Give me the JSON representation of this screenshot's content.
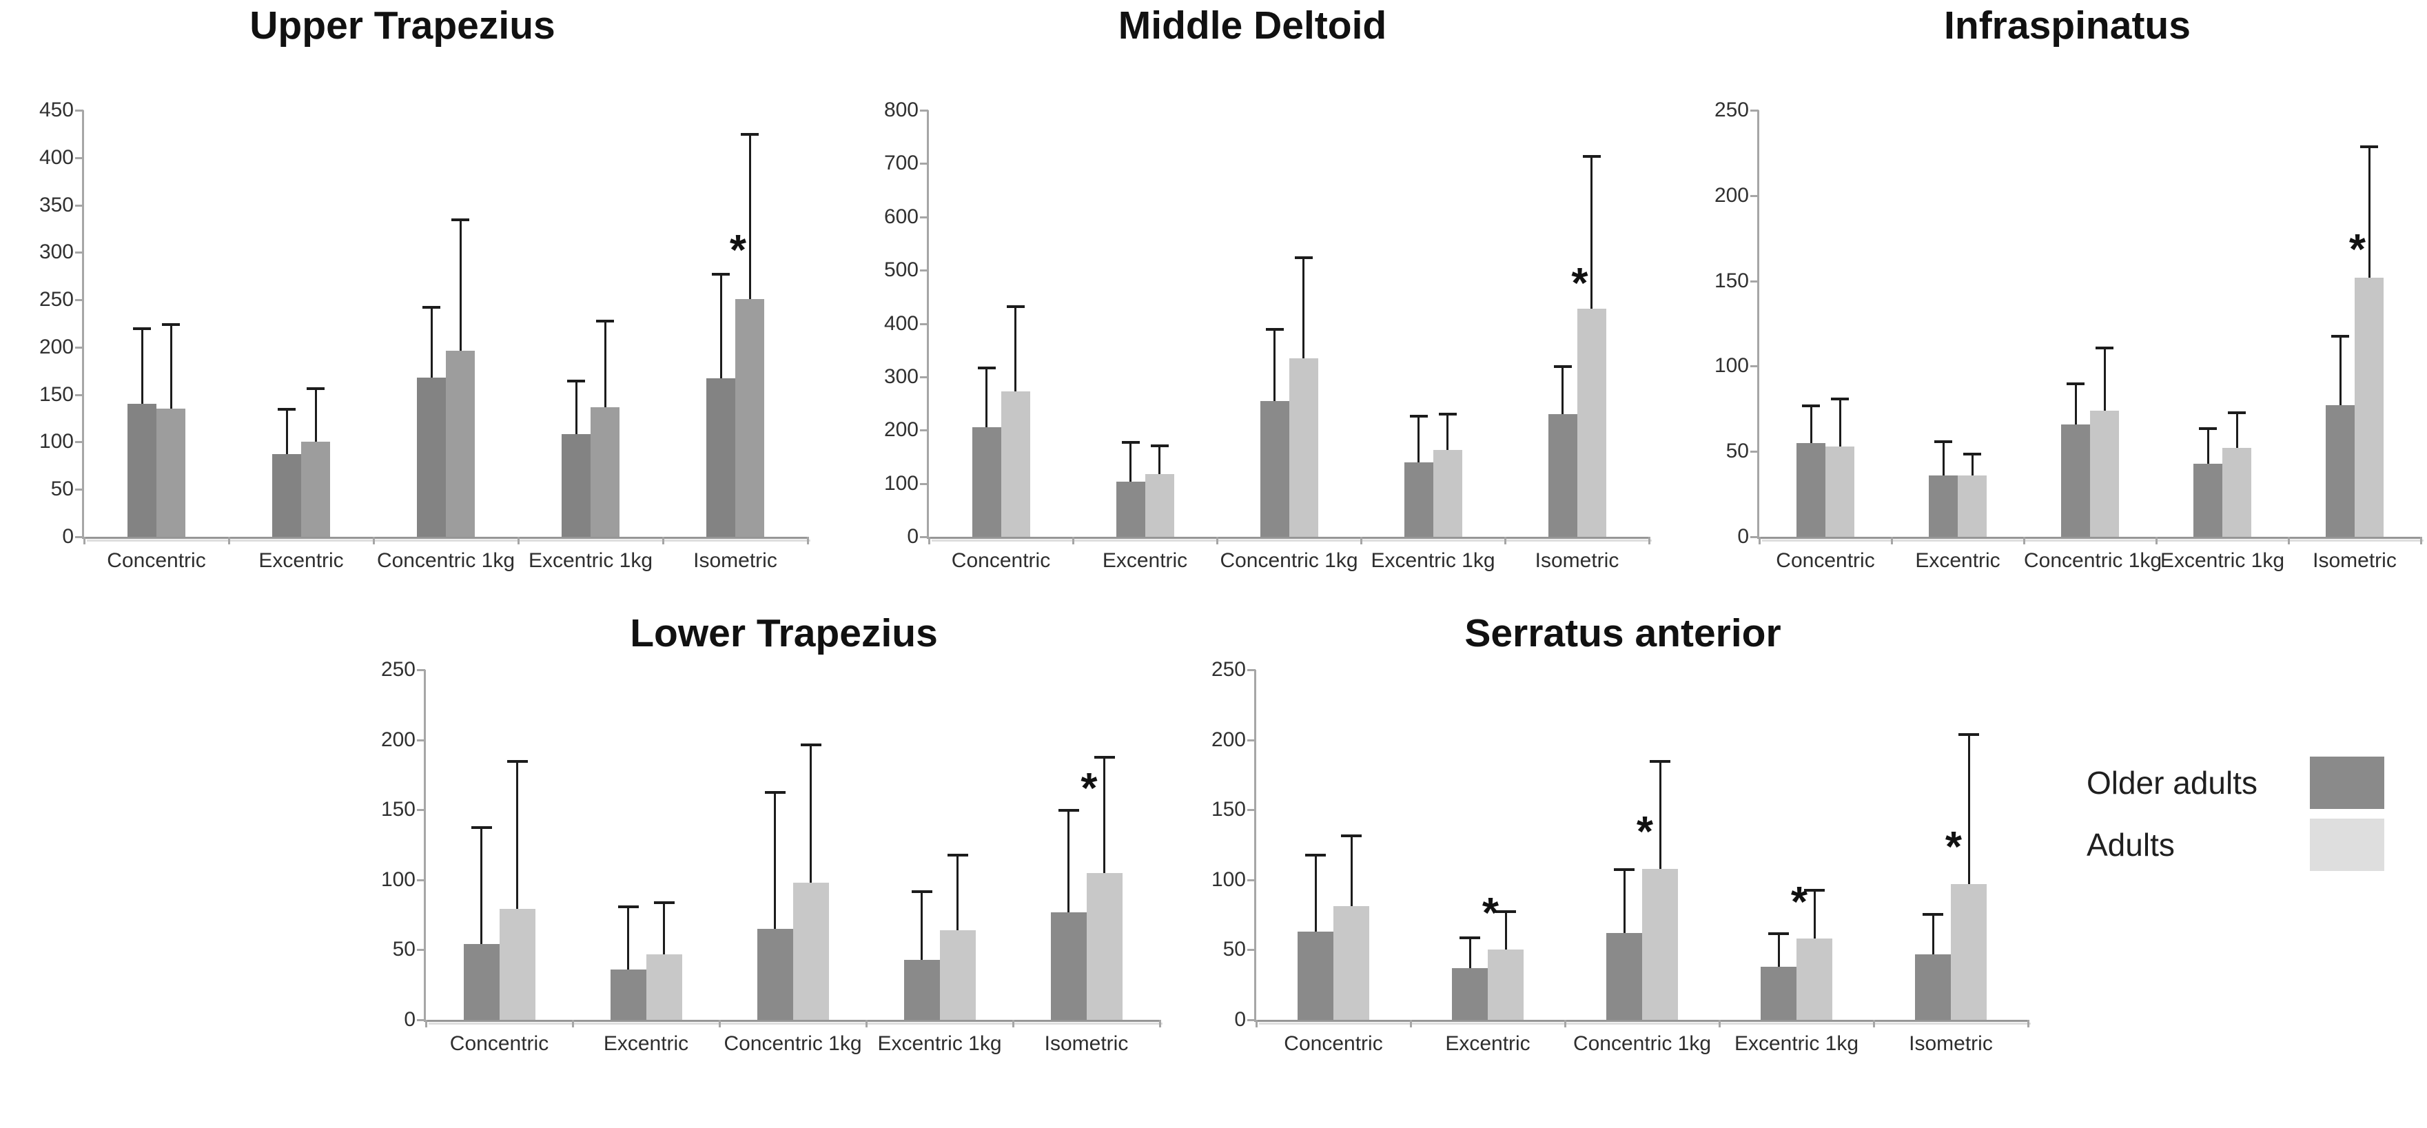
{
  "legend": {
    "items": [
      {
        "label": "Older adults",
        "color": "#8a8a8a"
      },
      {
        "label": "Adults",
        "color": "#dedede"
      }
    ]
  },
  "chart_data": [
    {
      "type": "bar",
      "title": "Upper Trapezius",
      "categories": [
        "Concentric",
        "Excentric",
        "Concentric 1kg",
        "Excentric 1kg",
        "Isometric"
      ],
      "series": [
        {
          "name": "Older adults",
          "color": "#838383",
          "values": [
            140,
            87,
            168,
            108,
            167
          ],
          "error_top": [
            220,
            135,
            243,
            165,
            278
          ]
        },
        {
          "name": "Adults",
          "color": "#9d9d9d",
          "values": [
            135,
            100,
            196,
            137,
            251
          ],
          "error_top": [
            225,
            157,
            335,
            228,
            425
          ]
        }
      ],
      "significant": [
        false,
        false,
        false,
        false,
        true
      ],
      "significance_marker": "*",
      "xlabel": "",
      "ylabel": "",
      "ylim": [
        0,
        450
      ],
      "ytick_step": 50,
      "grid": false,
      "legend_position": "none"
    },
    {
      "type": "bar",
      "title": "Middle Deltoid",
      "categories": [
        "Concentric",
        "Excentric",
        "Concentric 1kg",
        "Excentric 1kg",
        "Isometric"
      ],
      "series": [
        {
          "name": "Older adults",
          "color": "#8a8a8a",
          "values": [
            205,
            103,
            255,
            140,
            230
          ],
          "error_top": [
            318,
            178,
            390,
            228,
            320
          ]
        },
        {
          "name": "Adults",
          "color": "#c6c6c6",
          "values": [
            273,
            118,
            335,
            163,
            428
          ],
          "error_top": [
            433,
            172,
            525,
            232,
            715
          ]
        }
      ],
      "significant": [
        false,
        false,
        false,
        false,
        true
      ],
      "significance_marker": "*",
      "xlabel": "",
      "ylabel": "",
      "ylim": [
        0,
        800
      ],
      "ytick_step": 100,
      "grid": false,
      "legend_position": "none"
    },
    {
      "type": "bar",
      "title": "Infraspinatus",
      "categories": [
        "Concentric",
        "Excentric",
        "Concentric 1kg",
        "Excentric 1kg",
        "Isometric"
      ],
      "series": [
        {
          "name": "Older adults",
          "color": "#8a8a8a",
          "values": [
            55,
            36,
            66,
            43,
            77
          ],
          "error_top": [
            77,
            56,
            90,
            64,
            118
          ]
        },
        {
          "name": "Adults",
          "color": "#c6c6c6",
          "values": [
            53,
            36,
            74,
            52,
            152
          ],
          "error_top": [
            81,
            49,
            111,
            73,
            229
          ]
        }
      ],
      "significant": [
        false,
        false,
        false,
        false,
        true
      ],
      "significance_marker": "*",
      "xlabel": "",
      "ylabel": "",
      "ylim": [
        0,
        250
      ],
      "ytick_step": 50,
      "grid": false,
      "legend_position": "none"
    },
    {
      "type": "bar",
      "title": "Lower Trapezius",
      "categories": [
        "Concentric",
        "Excentric",
        "Concentric 1kg",
        "Excentric 1kg",
        "Isometric"
      ],
      "series": [
        {
          "name": "Older adults",
          "color": "#8a8a8a",
          "values": [
            54,
            36,
            65,
            43,
            77
          ],
          "error_top": [
            138,
            81,
            163,
            92,
            150
          ]
        },
        {
          "name": "Adults",
          "color": "#c8c8c8",
          "values": [
            79,
            47,
            98,
            64,
            105
          ],
          "error_top": [
            185,
            84,
            197,
            118,
            188
          ]
        }
      ],
      "significant": [
        false,
        false,
        false,
        false,
        true
      ],
      "significance_marker": "*",
      "xlabel": "",
      "ylabel": "",
      "ylim": [
        0,
        250
      ],
      "ytick_step": 50,
      "grid": false,
      "legend_position": "none"
    },
    {
      "type": "bar",
      "title": "Serratus anterior",
      "categories": [
        "Concentric",
        "Excentric",
        "Concentric 1kg",
        "Excentric 1kg",
        "Isometric"
      ],
      "series": [
        {
          "name": "Older adults",
          "color": "#8a8a8a",
          "values": [
            63,
            37,
            62,
            38,
            47
          ],
          "error_top": [
            118,
            59,
            108,
            62,
            76
          ]
        },
        {
          "name": "Adults",
          "color": "#c8c8c8",
          "values": [
            81,
            50,
            108,
            58,
            97
          ],
          "error_top": [
            132,
            78,
            185,
            93,
            204
          ]
        }
      ],
      "significant": [
        false,
        true,
        true,
        true,
        true
      ],
      "significance_marker": "*",
      "xlabel": "",
      "ylabel": "",
      "ylim": [
        0,
        250
      ],
      "ytick_step": 50,
      "grid": false,
      "legend_position": "none"
    }
  ]
}
